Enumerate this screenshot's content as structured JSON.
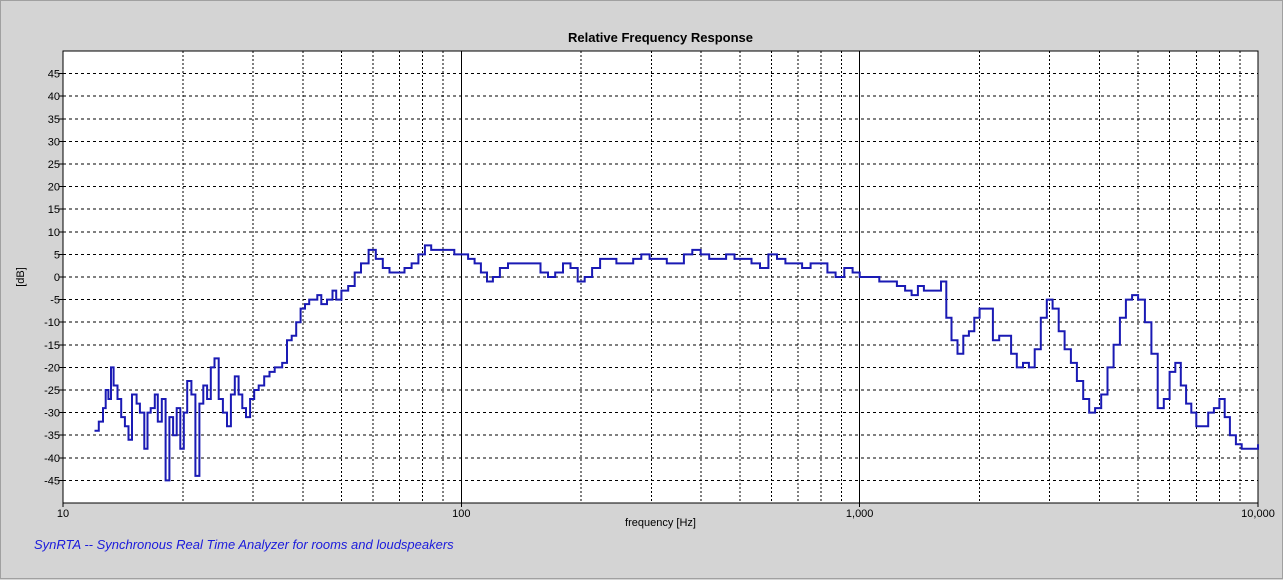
{
  "chart_data": {
    "type": "line",
    "title": "Relative Frequency Response",
    "xlabel": "frequency [Hz]",
    "ylabel": "[dB]",
    "x_scale": "log",
    "xlim": [
      10,
      10000
    ],
    "ylim": [
      -50,
      50
    ],
    "x_ticks": [
      10,
      100,
      1000,
      10000
    ],
    "x_tick_labels": [
      "10",
      "100",
      "1,000",
      "10,000"
    ],
    "y_ticks": [
      45,
      40,
      35,
      30,
      25,
      20,
      15,
      10,
      5,
      0,
      -5,
      -10,
      -15,
      -20,
      -25,
      -30,
      -35,
      -40,
      -45
    ],
    "grid": true,
    "line_color": "#1a1ab4",
    "series": [
      {
        "values": [
          [
            12.0,
            -34
          ],
          [
            12.3,
            -32
          ],
          [
            12.6,
            -29
          ],
          [
            12.8,
            -25
          ],
          [
            13.0,
            -27
          ],
          [
            13.2,
            -20
          ],
          [
            13.4,
            -24
          ],
          [
            13.7,
            -27
          ],
          [
            14.0,
            -31
          ],
          [
            14.3,
            -33
          ],
          [
            14.6,
            -36
          ],
          [
            14.9,
            -26
          ],
          [
            15.3,
            -28
          ],
          [
            15.6,
            -30
          ],
          [
            16.0,
            -38
          ],
          [
            16.3,
            -30
          ],
          [
            16.6,
            -29
          ],
          [
            17.0,
            -26
          ],
          [
            17.3,
            -32
          ],
          [
            17.7,
            -27
          ],
          [
            18.1,
            -45
          ],
          [
            18.5,
            -31
          ],
          [
            18.9,
            -35
          ],
          [
            19.3,
            -29
          ],
          [
            19.7,
            -38
          ],
          [
            20.1,
            -30
          ],
          [
            20.5,
            -23
          ],
          [
            21.0,
            -26
          ],
          [
            21.5,
            -44
          ],
          [
            22.0,
            -28
          ],
          [
            22.5,
            -24
          ],
          [
            23.0,
            -27
          ],
          [
            23.5,
            -20
          ],
          [
            24.0,
            -18
          ],
          [
            24.6,
            -27
          ],
          [
            25.2,
            -30
          ],
          [
            25.8,
            -33
          ],
          [
            26.4,
            -26
          ],
          [
            27.0,
            -22
          ],
          [
            27.6,
            -26
          ],
          [
            28.2,
            -29
          ],
          [
            28.8,
            -31
          ],
          [
            29.5,
            -27
          ],
          [
            30.2,
            -25
          ],
          [
            31.0,
            -24
          ],
          [
            32.0,
            -22
          ],
          [
            33.0,
            -21
          ],
          [
            34.0,
            -20
          ],
          [
            35.5,
            -19
          ],
          [
            36.5,
            -14
          ],
          [
            37.5,
            -13
          ],
          [
            38.5,
            -10
          ],
          [
            39.5,
            -7
          ],
          [
            40.5,
            -6
          ],
          [
            41.5,
            -5
          ],
          [
            42.5,
            -5
          ],
          [
            43.5,
            -4
          ],
          [
            44.5,
            -6
          ],
          [
            46.0,
            -5
          ],
          [
            47.5,
            -3
          ],
          [
            48.5,
            -5
          ],
          [
            50.0,
            -3
          ],
          [
            52.0,
            -2
          ],
          [
            54.0,
            1
          ],
          [
            56.0,
            3
          ],
          [
            58.5,
            6
          ],
          [
            61.0,
            4
          ],
          [
            63.5,
            2
          ],
          [
            66.0,
            1
          ],
          [
            69.0,
            1
          ],
          [
            72.0,
            2
          ],
          [
            75.0,
            3
          ],
          [
            78.0,
            5
          ],
          [
            81.0,
            7
          ],
          [
            84.0,
            6
          ],
          [
            88.0,
            6
          ],
          [
            92.0,
            6
          ],
          [
            96.0,
            5
          ],
          [
            100.0,
            5
          ],
          [
            104.0,
            4
          ],
          [
            108.0,
            3
          ],
          [
            112.0,
            1
          ],
          [
            116.0,
            -1
          ],
          [
            120.0,
            0
          ],
          [
            125.0,
            2
          ],
          [
            131.0,
            3
          ],
          [
            137.0,
            3
          ],
          [
            144.0,
            3
          ],
          [
            151.0,
            3
          ],
          [
            158.0,
            1
          ],
          [
            165.0,
            0
          ],
          [
            172.0,
            1
          ],
          [
            180.0,
            3
          ],
          [
            188.0,
            2
          ],
          [
            196.0,
            -1
          ],
          [
            204.0,
            0
          ],
          [
            213.0,
            2
          ],
          [
            223.0,
            4
          ],
          [
            234.0,
            4
          ],
          [
            245.0,
            3
          ],
          [
            257.0,
            3
          ],
          [
            270.0,
            4
          ],
          [
            283.0,
            5
          ],
          [
            297.0,
            4
          ],
          [
            312.0,
            4
          ],
          [
            328.0,
            3
          ],
          [
            345.0,
            3
          ],
          [
            362.0,
            5
          ],
          [
            380.0,
            6
          ],
          [
            399.0,
            5
          ],
          [
            419.0,
            4
          ],
          [
            440.0,
            4
          ],
          [
            462.0,
            5
          ],
          [
            485.0,
            4
          ],
          [
            509.0,
            4
          ],
          [
            535.0,
            3
          ],
          [
            562.0,
            2
          ],
          [
            590.0,
            5
          ],
          [
            620.0,
            4
          ],
          [
            651.0,
            3
          ],
          [
            683.0,
            3
          ],
          [
            717.0,
            2
          ],
          [
            753.0,
            3
          ],
          [
            791.0,
            3
          ],
          [
            830.0,
            1
          ],
          [
            870.0,
            0
          ],
          [
            915.0,
            2
          ],
          [
            960.0,
            1
          ],
          [
            1000.0,
            0
          ],
          [
            1060.0,
            0
          ],
          [
            1120.0,
            -1
          ],
          [
            1180.0,
            -1
          ],
          [
            1240.0,
            -2
          ],
          [
            1300.0,
            -3
          ],
          [
            1350.0,
            -4
          ],
          [
            1400.0,
            -2
          ],
          [
            1450.0,
            -3
          ],
          [
            1500.0,
            -3
          ],
          [
            1550.0,
            -3
          ],
          [
            1600.0,
            -1
          ],
          [
            1650.0,
            -9
          ],
          [
            1700.0,
            -14
          ],
          [
            1760.0,
            -17
          ],
          [
            1820.0,
            -13
          ],
          [
            1880.0,
            -12
          ],
          [
            1940.0,
            -9
          ],
          [
            2000.0,
            -7
          ],
          [
            2080.0,
            -7
          ],
          [
            2160.0,
            -14
          ],
          [
            2240.0,
            -13
          ],
          [
            2320.0,
            -13
          ],
          [
            2400.0,
            -17
          ],
          [
            2480.0,
            -20
          ],
          [
            2570.0,
            -19
          ],
          [
            2660.0,
            -20
          ],
          [
            2750.0,
            -16
          ],
          [
            2850.0,
            -9
          ],
          [
            2950.0,
            -5
          ],
          [
            3050.0,
            -7
          ],
          [
            3160.0,
            -12
          ],
          [
            3270.0,
            -16
          ],
          [
            3390.0,
            -19
          ],
          [
            3510.0,
            -23
          ],
          [
            3640.0,
            -27
          ],
          [
            3770.0,
            -30
          ],
          [
            3900.0,
            -29
          ],
          [
            4040.0,
            -26
          ],
          [
            4190.0,
            -20
          ],
          [
            4340.0,
            -15
          ],
          [
            4500.0,
            -9
          ],
          [
            4660.0,
            -5
          ],
          [
            4830.0,
            -4
          ],
          [
            5000.0,
            -5
          ],
          [
            5200.0,
            -10
          ],
          [
            5400.0,
            -17
          ],
          [
            5600.0,
            -29
          ],
          [
            5800.0,
            -27
          ],
          [
            6000.0,
            -21
          ],
          [
            6200.0,
            -19
          ],
          [
            6400.0,
            -24
          ],
          [
            6600.0,
            -28
          ],
          [
            6800.0,
            -30
          ],
          [
            7000.0,
            -33
          ],
          [
            7250.0,
            -33
          ],
          [
            7500.0,
            -30
          ],
          [
            7750.0,
            -29
          ],
          [
            8000.0,
            -27
          ],
          [
            8250.0,
            -31
          ],
          [
            8500.0,
            -35
          ],
          [
            8800.0,
            -37
          ],
          [
            9100.0,
            -38
          ],
          [
            9400.0,
            -38
          ],
          [
            9700.0,
            -38
          ],
          [
            10000.0,
            -37
          ]
        ]
      }
    ]
  },
  "footer": {
    "text": "SynRTA -- Synchronous Real Time Analyzer for rooms and loudspeakers"
  }
}
